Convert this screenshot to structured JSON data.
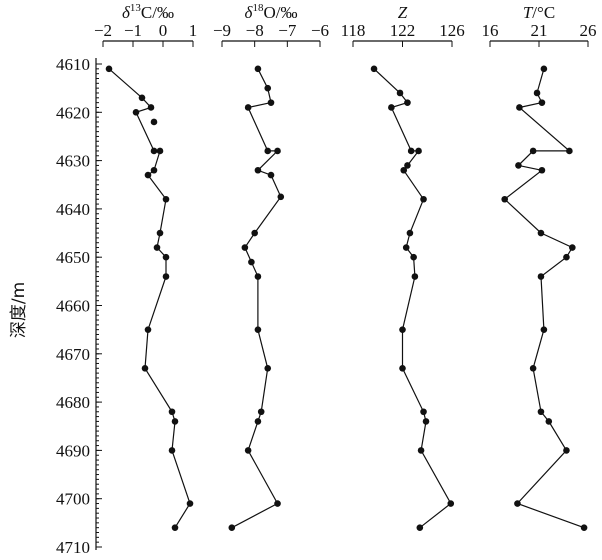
{
  "chart_data": {
    "type": "line",
    "orientation": "depth-profile",
    "ylabel": "深度/m",
    "ylim": [
      4610,
      4710
    ],
    "y_ticks": [
      4610,
      4620,
      4630,
      4640,
      4650,
      4660,
      4670,
      4680,
      4690,
      4700,
      4710
    ],
    "y_tick_labels": [
      "4610",
      "4620",
      "4630",
      "4640",
      "4650",
      "4660",
      "4670",
      "4680",
      "4690",
      "4700",
      "4710"
    ],
    "grid": false,
    "panels": [
      {
        "id": "d13c",
        "title_prefix": "δ",
        "title_sup": "13",
        "title_suffix": "C/‰",
        "title_italic_prefix": true,
        "xlim": [
          -2,
          1
        ],
        "x_ticks": [
          -2,
          -1,
          0,
          1
        ],
        "x_tick_labels": [
          "−2",
          "−1",
          "0",
          "1"
        ],
        "series": [
          {
            "depth": [
              4611,
              4617,
              4619,
              4620,
              4628,
              4628,
              4632,
              4633,
              4638,
              4645,
              4648,
              4650,
              4654,
              4665,
              4673,
              4682,
              4684,
              4690,
              4701,
              4706
            ],
            "values": [
              -1.8,
              -0.7,
              -0.4,
              -0.9,
              -0.3,
              -0.1,
              -0.3,
              -0.5,
              0.1,
              -0.1,
              -0.2,
              0.1,
              0.1,
              -0.5,
              -0.6,
              0.3,
              0.4,
              0.3,
              0.9,
              0.4
            ]
          }
        ],
        "isolated_points": [
          {
            "depth": 4622,
            "value": -0.3
          }
        ]
      },
      {
        "id": "d18o",
        "title_prefix": "δ",
        "title_sup": "18",
        "title_suffix": "O/‰",
        "title_italic_prefix": true,
        "xlim": [
          -9,
          -6
        ],
        "x_ticks": [
          -9,
          -8,
          -7,
          -6
        ],
        "x_tick_labels": [
          "−9",
          "−8",
          "−7",
          "−6"
        ],
        "series": [
          {
            "depth": [
              4611,
              4615,
              4618,
              4619,
              4628,
              4628,
              4632,
              4633,
              4637.5,
              4645,
              4648,
              4651,
              4654,
              4665,
              4673,
              4682,
              4684,
              4690,
              4701,
              4706
            ],
            "values": [
              -7.9,
              -7.6,
              -7.5,
              -8.2,
              -7.6,
              -7.3,
              -7.9,
              -7.5,
              -7.2,
              -8.0,
              -8.3,
              -8.1,
              -7.9,
              -7.9,
              -7.6,
              -7.8,
              -7.9,
              -8.2,
              -7.3,
              -8.7
            ]
          }
        ]
      },
      {
        "id": "z",
        "title_prefix": "Z",
        "title_sup": "",
        "title_suffix": "",
        "title_italic_prefix": true,
        "xlim": [
          118,
          126
        ],
        "x_ticks": [
          118,
          122,
          126
        ],
        "x_tick_labels": [
          "118",
          "122",
          "126"
        ],
        "series": [
          {
            "depth": [
              4611,
              4616,
              4618,
              4619,
              4628,
              4628,
              4631,
              4632,
              4638,
              4645,
              4648,
              4650,
              4654,
              4665,
              4673,
              4682,
              4684,
              4690,
              4701,
              4706
            ],
            "values": [
              119.7,
              121.8,
              122.4,
              121.1,
              122.7,
              123.3,
              122.4,
              122.1,
              123.7,
              122.6,
              122.3,
              122.9,
              123.0,
              122.0,
              122.0,
              123.7,
              123.9,
              123.5,
              125.9,
              123.4
            ]
          }
        ]
      },
      {
        "id": "t",
        "title_prefix": "T",
        "title_sup": "",
        "title_suffix": "/°C",
        "title_italic_prefix": true,
        "xlim": [
          16,
          26
        ],
        "x_ticks": [
          16,
          21,
          26
        ],
        "x_tick_labels": [
          "16",
          "21",
          "26"
        ],
        "series": [
          {
            "depth": [
              4611,
              4616,
              4618,
              4619,
              4628,
              4628,
              4631,
              4632,
              4638,
              4645,
              4648,
              4650,
              4654,
              4665,
              4673,
              4682,
              4684,
              4690,
              4701,
              4706
            ],
            "values": [
              21.5,
              20.8,
              21.3,
              19.0,
              24.1,
              20.4,
              18.9,
              21.3,
              17.5,
              21.2,
              24.4,
              23.8,
              21.2,
              21.5,
              20.4,
              21.2,
              22.0,
              23.8,
              18.8,
              25.6
            ]
          }
        ]
      }
    ]
  }
}
